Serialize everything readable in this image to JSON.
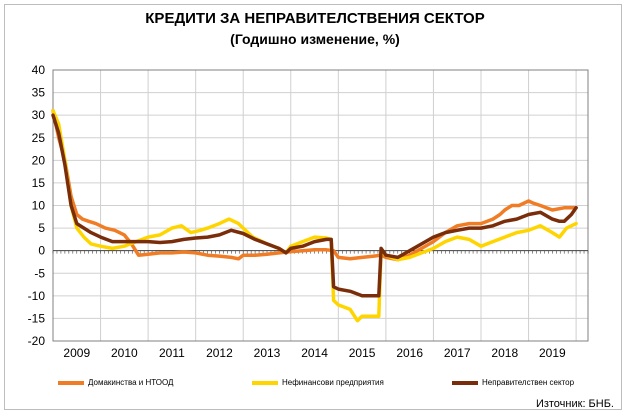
{
  "chart_data": {
    "type": "line",
    "title": "КРЕДИТИ ЗА НЕПРАВИТЕЛСТВЕНИЯ СЕКТОР",
    "subtitle": "(Годишно изменение, %)",
    "ylim": [
      -20,
      40
    ],
    "yticks": [
      "40",
      "35",
      "30",
      "25",
      "20",
      "15",
      "10",
      "5",
      "0",
      "-5",
      "-10",
      "-15",
      "-20"
    ],
    "xlim": [
      2008.5,
      2019.75
    ],
    "xticks": [
      {
        "label": "2009",
        "at": 2009.0
      },
      {
        "label": "2010",
        "at": 2010.0
      },
      {
        "label": "2011",
        "at": 2011.0
      },
      {
        "label": "2012",
        "at": 2012.0
      },
      {
        "label": "2013",
        "at": 2013.0
      },
      {
        "label": "2014",
        "at": 2014.0
      },
      {
        "label": "2015",
        "at": 2015.0
      },
      {
        "label": "2016",
        "at": 2016.0
      },
      {
        "label": "2017",
        "at": 2017.0
      },
      {
        "label": "2018",
        "at": 2018.0
      },
      {
        "label": "2019",
        "at": 2019.0
      }
    ],
    "grid": true,
    "legend_position": "bottom",
    "series": [
      {
        "name": "Домакинства и НТООД",
        "color": "#f07d25",
        "points": [
          [
            2008.5,
            31
          ],
          [
            2008.62,
            25
          ],
          [
            2008.75,
            20
          ],
          [
            2008.88,
            12
          ],
          [
            2009.0,
            8
          ],
          [
            2009.12,
            7
          ],
          [
            2009.25,
            6.5
          ],
          [
            2009.4,
            6
          ],
          [
            2009.6,
            5
          ],
          [
            2009.8,
            4.5
          ],
          [
            2010.0,
            3.5
          ],
          [
            2010.15,
            1.5
          ],
          [
            2010.3,
            -1
          ],
          [
            2010.5,
            -0.8
          ],
          [
            2010.75,
            -0.5
          ],
          [
            2011.0,
            -0.5
          ],
          [
            2011.25,
            -0.3
          ],
          [
            2011.5,
            -0.5
          ],
          [
            2011.75,
            -1
          ],
          [
            2012.0,
            -1.2
          ],
          [
            2012.25,
            -1.5
          ],
          [
            2012.4,
            -1.8
          ],
          [
            2012.5,
            -1
          ],
          [
            2012.75,
            -1
          ],
          [
            2013.0,
            -0.8
          ],
          [
            2013.25,
            -0.5
          ],
          [
            2013.5,
            -0.2
          ],
          [
            2013.75,
            0
          ],
          [
            2014.0,
            0.2
          ],
          [
            2014.25,
            0.2
          ],
          [
            2014.4,
            0
          ],
          [
            2014.5,
            -1.5
          ],
          [
            2014.75,
            -1.8
          ],
          [
            2015.0,
            -1.5
          ],
          [
            2015.25,
            -1.2
          ],
          [
            2015.4,
            -1
          ],
          [
            2015.5,
            -1.5
          ],
          [
            2015.75,
            -2
          ],
          [
            2016.0,
            -1
          ],
          [
            2016.25,
            0.5
          ],
          [
            2016.5,
            2
          ],
          [
            2016.75,
            4
          ],
          [
            2017.0,
            5.5
          ],
          [
            2017.25,
            6
          ],
          [
            2017.5,
            6
          ],
          [
            2017.75,
            7
          ],
          [
            2017.9,
            8
          ],
          [
            2018.0,
            9
          ],
          [
            2018.15,
            10
          ],
          [
            2018.3,
            10
          ],
          [
            2018.5,
            11
          ],
          [
            2018.6,
            10.5
          ],
          [
            2018.75,
            10
          ],
          [
            2019.0,
            9
          ],
          [
            2019.25,
            9.5
          ],
          [
            2019.5,
            9.5
          ]
        ]
      },
      {
        "name": "Нефинансови предприятия",
        "color": "#ffd500",
        "points": [
          [
            2008.5,
            31
          ],
          [
            2008.62,
            28
          ],
          [
            2008.75,
            20
          ],
          [
            2008.88,
            10
          ],
          [
            2009.0,
            5
          ],
          [
            2009.15,
            3
          ],
          [
            2009.3,
            1.5
          ],
          [
            2009.5,
            1
          ],
          [
            2009.75,
            0.5
          ],
          [
            2010.0,
            1
          ],
          [
            2010.25,
            2
          ],
          [
            2010.5,
            3
          ],
          [
            2010.75,
            3.5
          ],
          [
            2011.0,
            5
          ],
          [
            2011.2,
            5.5
          ],
          [
            2011.4,
            4
          ],
          [
            2011.6,
            4.5
          ],
          [
            2011.75,
            5
          ],
          [
            2012.0,
            6
          ],
          [
            2012.2,
            7
          ],
          [
            2012.4,
            6
          ],
          [
            2012.5,
            5
          ],
          [
            2012.7,
            3
          ],
          [
            2012.9,
            2
          ],
          [
            2013.0,
            1.5
          ],
          [
            2013.25,
            0.5
          ],
          [
            2013.4,
            -0.5
          ],
          [
            2013.5,
            1
          ],
          [
            2013.75,
            2
          ],
          [
            2014.0,
            3
          ],
          [
            2014.25,
            2.8
          ],
          [
            2014.35,
            2.5
          ],
          [
            2014.4,
            -11
          ],
          [
            2014.5,
            -12
          ],
          [
            2014.75,
            -13
          ],
          [
            2014.9,
            -15.5
          ],
          [
            2015.0,
            -14.5
          ],
          [
            2015.25,
            -14.5
          ],
          [
            2015.35,
            -14.5
          ],
          [
            2015.4,
            0
          ],
          [
            2015.5,
            -1
          ],
          [
            2015.75,
            -2
          ],
          [
            2016.0,
            -1.5
          ],
          [
            2016.25,
            -0.5
          ],
          [
            2016.5,
            0.5
          ],
          [
            2016.75,
            2
          ],
          [
            2017.0,
            3
          ],
          [
            2017.25,
            2.5
          ],
          [
            2017.5,
            1
          ],
          [
            2017.75,
            2
          ],
          [
            2018.0,
            3
          ],
          [
            2018.25,
            4
          ],
          [
            2018.5,
            4.5
          ],
          [
            2018.75,
            5.5
          ],
          [
            2019.0,
            4
          ],
          [
            2019.15,
            3
          ],
          [
            2019.3,
            5
          ],
          [
            2019.5,
            6
          ]
        ]
      },
      {
        "name": "Неправителствен сектор",
        "color": "#7a2d0a",
        "points": [
          [
            2008.5,
            30
          ],
          [
            2008.62,
            26
          ],
          [
            2008.75,
            19
          ],
          [
            2008.88,
            10
          ],
          [
            2009.0,
            6
          ],
          [
            2009.15,
            5
          ],
          [
            2009.3,
            4
          ],
          [
            2009.5,
            3
          ],
          [
            2009.75,
            2
          ],
          [
            2010.0,
            2
          ],
          [
            2010.25,
            2
          ],
          [
            2010.5,
            2
          ],
          [
            2010.75,
            1.8
          ],
          [
            2011.0,
            2
          ],
          [
            2011.25,
            2.5
          ],
          [
            2011.5,
            2.8
          ],
          [
            2011.75,
            3
          ],
          [
            2012.0,
            3.5
          ],
          [
            2012.25,
            4.5
          ],
          [
            2012.5,
            3.8
          ],
          [
            2012.75,
            2.5
          ],
          [
            2013.0,
            1.5
          ],
          [
            2013.25,
            0.5
          ],
          [
            2013.4,
            -0.5
          ],
          [
            2013.5,
            0.5
          ],
          [
            2013.75,
            1
          ],
          [
            2014.0,
            2
          ],
          [
            2014.25,
            2.5
          ],
          [
            2014.35,
            2.5
          ],
          [
            2014.4,
            -8
          ],
          [
            2014.5,
            -8.5
          ],
          [
            2014.75,
            -9
          ],
          [
            2015.0,
            -10
          ],
          [
            2015.25,
            -10
          ],
          [
            2015.35,
            -10
          ],
          [
            2015.4,
            0.5
          ],
          [
            2015.5,
            -1
          ],
          [
            2015.75,
            -1.5
          ],
          [
            2016.0,
            0
          ],
          [
            2016.25,
            1.5
          ],
          [
            2016.5,
            3
          ],
          [
            2016.75,
            4
          ],
          [
            2017.0,
            4.5
          ],
          [
            2017.25,
            5
          ],
          [
            2017.5,
            5
          ],
          [
            2017.75,
            5.5
          ],
          [
            2018.0,
            6.5
          ],
          [
            2018.25,
            7
          ],
          [
            2018.5,
            8
          ],
          [
            2018.75,
            8.5
          ],
          [
            2019.0,
            7
          ],
          [
            2019.15,
            6.5
          ],
          [
            2019.25,
            6.5
          ],
          [
            2019.4,
            8
          ],
          [
            2019.5,
            9.5
          ]
        ]
      }
    ],
    "source": "Източник: БНБ."
  }
}
